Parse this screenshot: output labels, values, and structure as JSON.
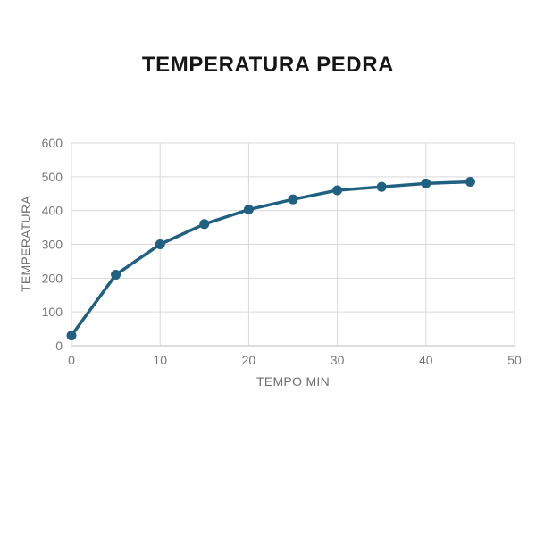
{
  "page": {
    "background": "#ffffff"
  },
  "chart_data": {
    "type": "line",
    "title": "TEMPERATURA PEDRA",
    "xlabel": "TEMPO MIN",
    "ylabel": "TEMPERATURA",
    "x": [
      0,
      5,
      10,
      15,
      20,
      25,
      30,
      35,
      40,
      45
    ],
    "series": [
      {
        "name": "TEMPERATURA PEDRA",
        "values": [
          30,
          210,
          300,
          360,
          403,
          433,
          460,
          470,
          480,
          485
        ]
      }
    ],
    "xlim": [
      0,
      50
    ],
    "ylim": [
      0,
      600
    ],
    "x_ticks": [
      0,
      10,
      20,
      30,
      40,
      50
    ],
    "y_ticks": [
      0,
      100,
      200,
      300,
      400,
      500,
      600
    ],
    "grid": true,
    "legend": "none",
    "colors": {
      "line": "#206080",
      "marker": "#206080",
      "grid": "#d9d9d9",
      "axis_line": "#bdbdbd",
      "tick_label": "#767676",
      "axis_title": "#6f6f6f",
      "title": "#161616"
    }
  }
}
